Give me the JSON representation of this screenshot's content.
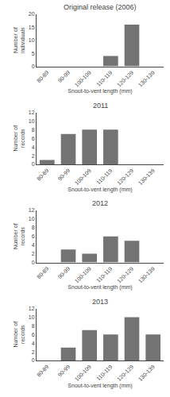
{
  "chart_data": [
    {
      "type": "bar",
      "title": "Original release (2006)",
      "xlabel": "Snout-to-vent length (mm)",
      "ylabel": "Number of\nindividuals",
      "categories": [
        "80-89",
        "90-99",
        "100-109",
        "110-119",
        "120-129",
        "130-139"
      ],
      "values": [
        0,
        0,
        0,
        4,
        16,
        0
      ],
      "color": "#737373",
      "ylim": [
        0,
        20
      ],
      "yticks": [
        0,
        5,
        10,
        15,
        20
      ],
      "grid": false
    },
    {
      "type": "bar",
      "title": "2011",
      "xlabel": "Snout-to-vent length (mm)",
      "ylabel": "Number of\nrecords",
      "categories": [
        "80-89",
        "90-99",
        "100-109",
        "110-119",
        "120-129",
        "130-139"
      ],
      "values": [
        1,
        7,
        8,
        8,
        0,
        0
      ],
      "color": "#737373",
      "ylim": [
        0,
        12
      ],
      "yticks": [
        0,
        2,
        4,
        6,
        8,
        10,
        12
      ],
      "grid": false
    },
    {
      "type": "bar",
      "title": "2012",
      "xlabel": "Snout-to-vent length (mm)",
      "ylabel": "Number of\nrecords",
      "categories": [
        "80-89",
        "90-99",
        "100-109",
        "110-119",
        "120-129",
        "130-139"
      ],
      "values": [
        0,
        3,
        2,
        6,
        5,
        0
      ],
      "color": "#737373",
      "ylim": [
        0,
        12
      ],
      "yticks": [
        0,
        2,
        4,
        6,
        8,
        10,
        12
      ],
      "grid": false
    },
    {
      "type": "bar",
      "title": "2013",
      "xlabel": "Snout-to-vent length (mm)",
      "ylabel": "Number of\nrecords",
      "categories": [
        "80-89",
        "90-99",
        "100-109",
        "110-119",
        "120-129",
        "130-139"
      ],
      "values": [
        0,
        3,
        7,
        6,
        10,
        6
      ],
      "color": "#737373",
      "ylim": [
        0,
        12
      ],
      "yticks": [
        0,
        2,
        4,
        6,
        8,
        10,
        12
      ],
      "grid": false
    }
  ]
}
